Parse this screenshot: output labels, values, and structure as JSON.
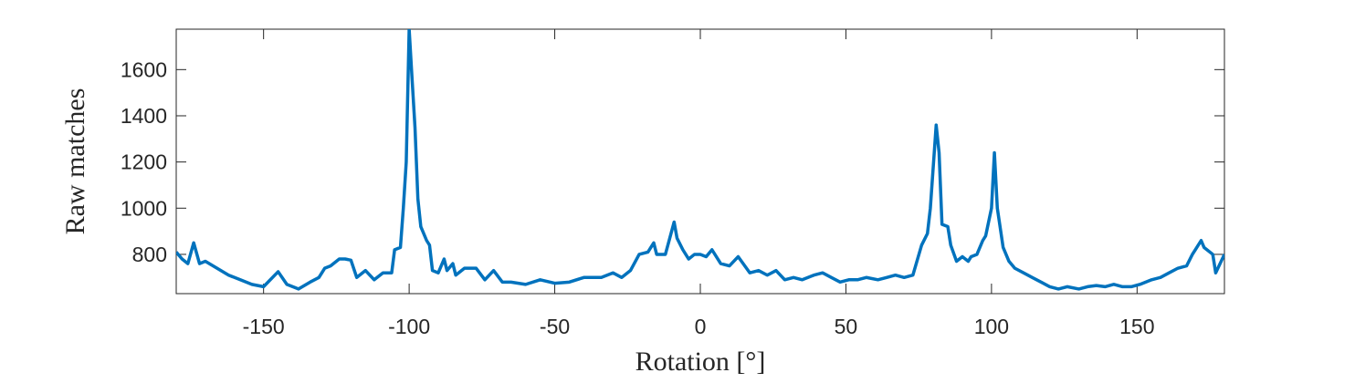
{
  "chart_data": {
    "type": "line",
    "x_label": "Rotation [°]",
    "y_label": "Raw matches",
    "xlim": [
      -180,
      180
    ],
    "ylim": [
      630,
      1775
    ],
    "xticks": [
      -150,
      -100,
      -50,
      0,
      50,
      100,
      150
    ],
    "yticks": [
      800,
      1000,
      1200,
      1400,
      1600
    ],
    "grid": false,
    "series": [
      {
        "color": "#0072bd",
        "x": [
          -180,
          -178,
          -176,
          -174,
          -172,
          -170,
          -166,
          -162,
          -158,
          -154,
          -150,
          -145,
          -142,
          -138,
          -134,
          -131,
          -129,
          -127,
          -124,
          -122,
          -120,
          -118,
          -115,
          -112,
          -109,
          -106,
          -105,
          -103,
          -102,
          -101,
          -100,
          -99,
          -98,
          -97,
          -96,
          -94,
          -93,
          -92,
          -90,
          -88,
          -87,
          -85,
          -84,
          -81,
          -77,
          -74,
          -71,
          -68,
          -65,
          -60,
          -55,
          -50,
          -45,
          -40,
          -34,
          -30,
          -27,
          -24,
          -21,
          -18,
          -16,
          -15,
          -12,
          -9,
          -8,
          -6,
          -4,
          -2,
          0,
          2,
          4,
          7,
          10,
          13,
          17,
          20,
          23,
          26,
          29,
          32,
          35,
          39,
          42,
          45,
          48,
          51,
          54,
          57,
          61,
          64,
          67,
          70,
          73,
          76,
          78,
          79,
          81,
          82,
          83,
          85,
          86,
          88,
          90,
          92,
          93,
          95,
          97,
          98,
          100,
          101,
          102,
          104,
          106,
          108,
          111,
          114,
          117,
          120,
          123,
          126,
          130,
          133,
          136,
          139,
          142,
          145,
          148,
          151,
          155,
          158,
          161,
          164,
          167,
          169,
          170,
          172,
          173,
          176,
          177,
          180
        ],
        "values": [
          810,
          780,
          760,
          850,
          760,
          770,
          740,
          710,
          690,
          670,
          660,
          725,
          670,
          650,
          680,
          700,
          740,
          750,
          780,
          780,
          775,
          700,
          730,
          690,
          720,
          720,
          820,
          830,
          1000,
          1200,
          1775,
          1560,
          1350,
          1040,
          920,
          860,
          840,
          730,
          720,
          780,
          730,
          760,
          710,
          740,
          740,
          690,
          730,
          680,
          680,
          670,
          690,
          675,
          680,
          700,
          700,
          720,
          700,
          730,
          800,
          810,
          850,
          800,
          800,
          940,
          870,
          820,
          780,
          800,
          800,
          790,
          820,
          760,
          750,
          790,
          720,
          730,
          710,
          730,
          690,
          700,
          690,
          710,
          720,
          700,
          680,
          690,
          690,
          700,
          690,
          700,
          710,
          700,
          710,
          840,
          890,
          1000,
          1360,
          1240,
          930,
          920,
          840,
          770,
          790,
          770,
          790,
          800,
          860,
          880,
          1000,
          1240,
          1000,
          830,
          770,
          740,
          720,
          700,
          680,
          660,
          650,
          660,
          650,
          660,
          665,
          660,
          670,
          660,
          660,
          670,
          690,
          700,
          720,
          740,
          750,
          800,
          820,
          860,
          830,
          800,
          720,
          800
        ]
      }
    ]
  }
}
